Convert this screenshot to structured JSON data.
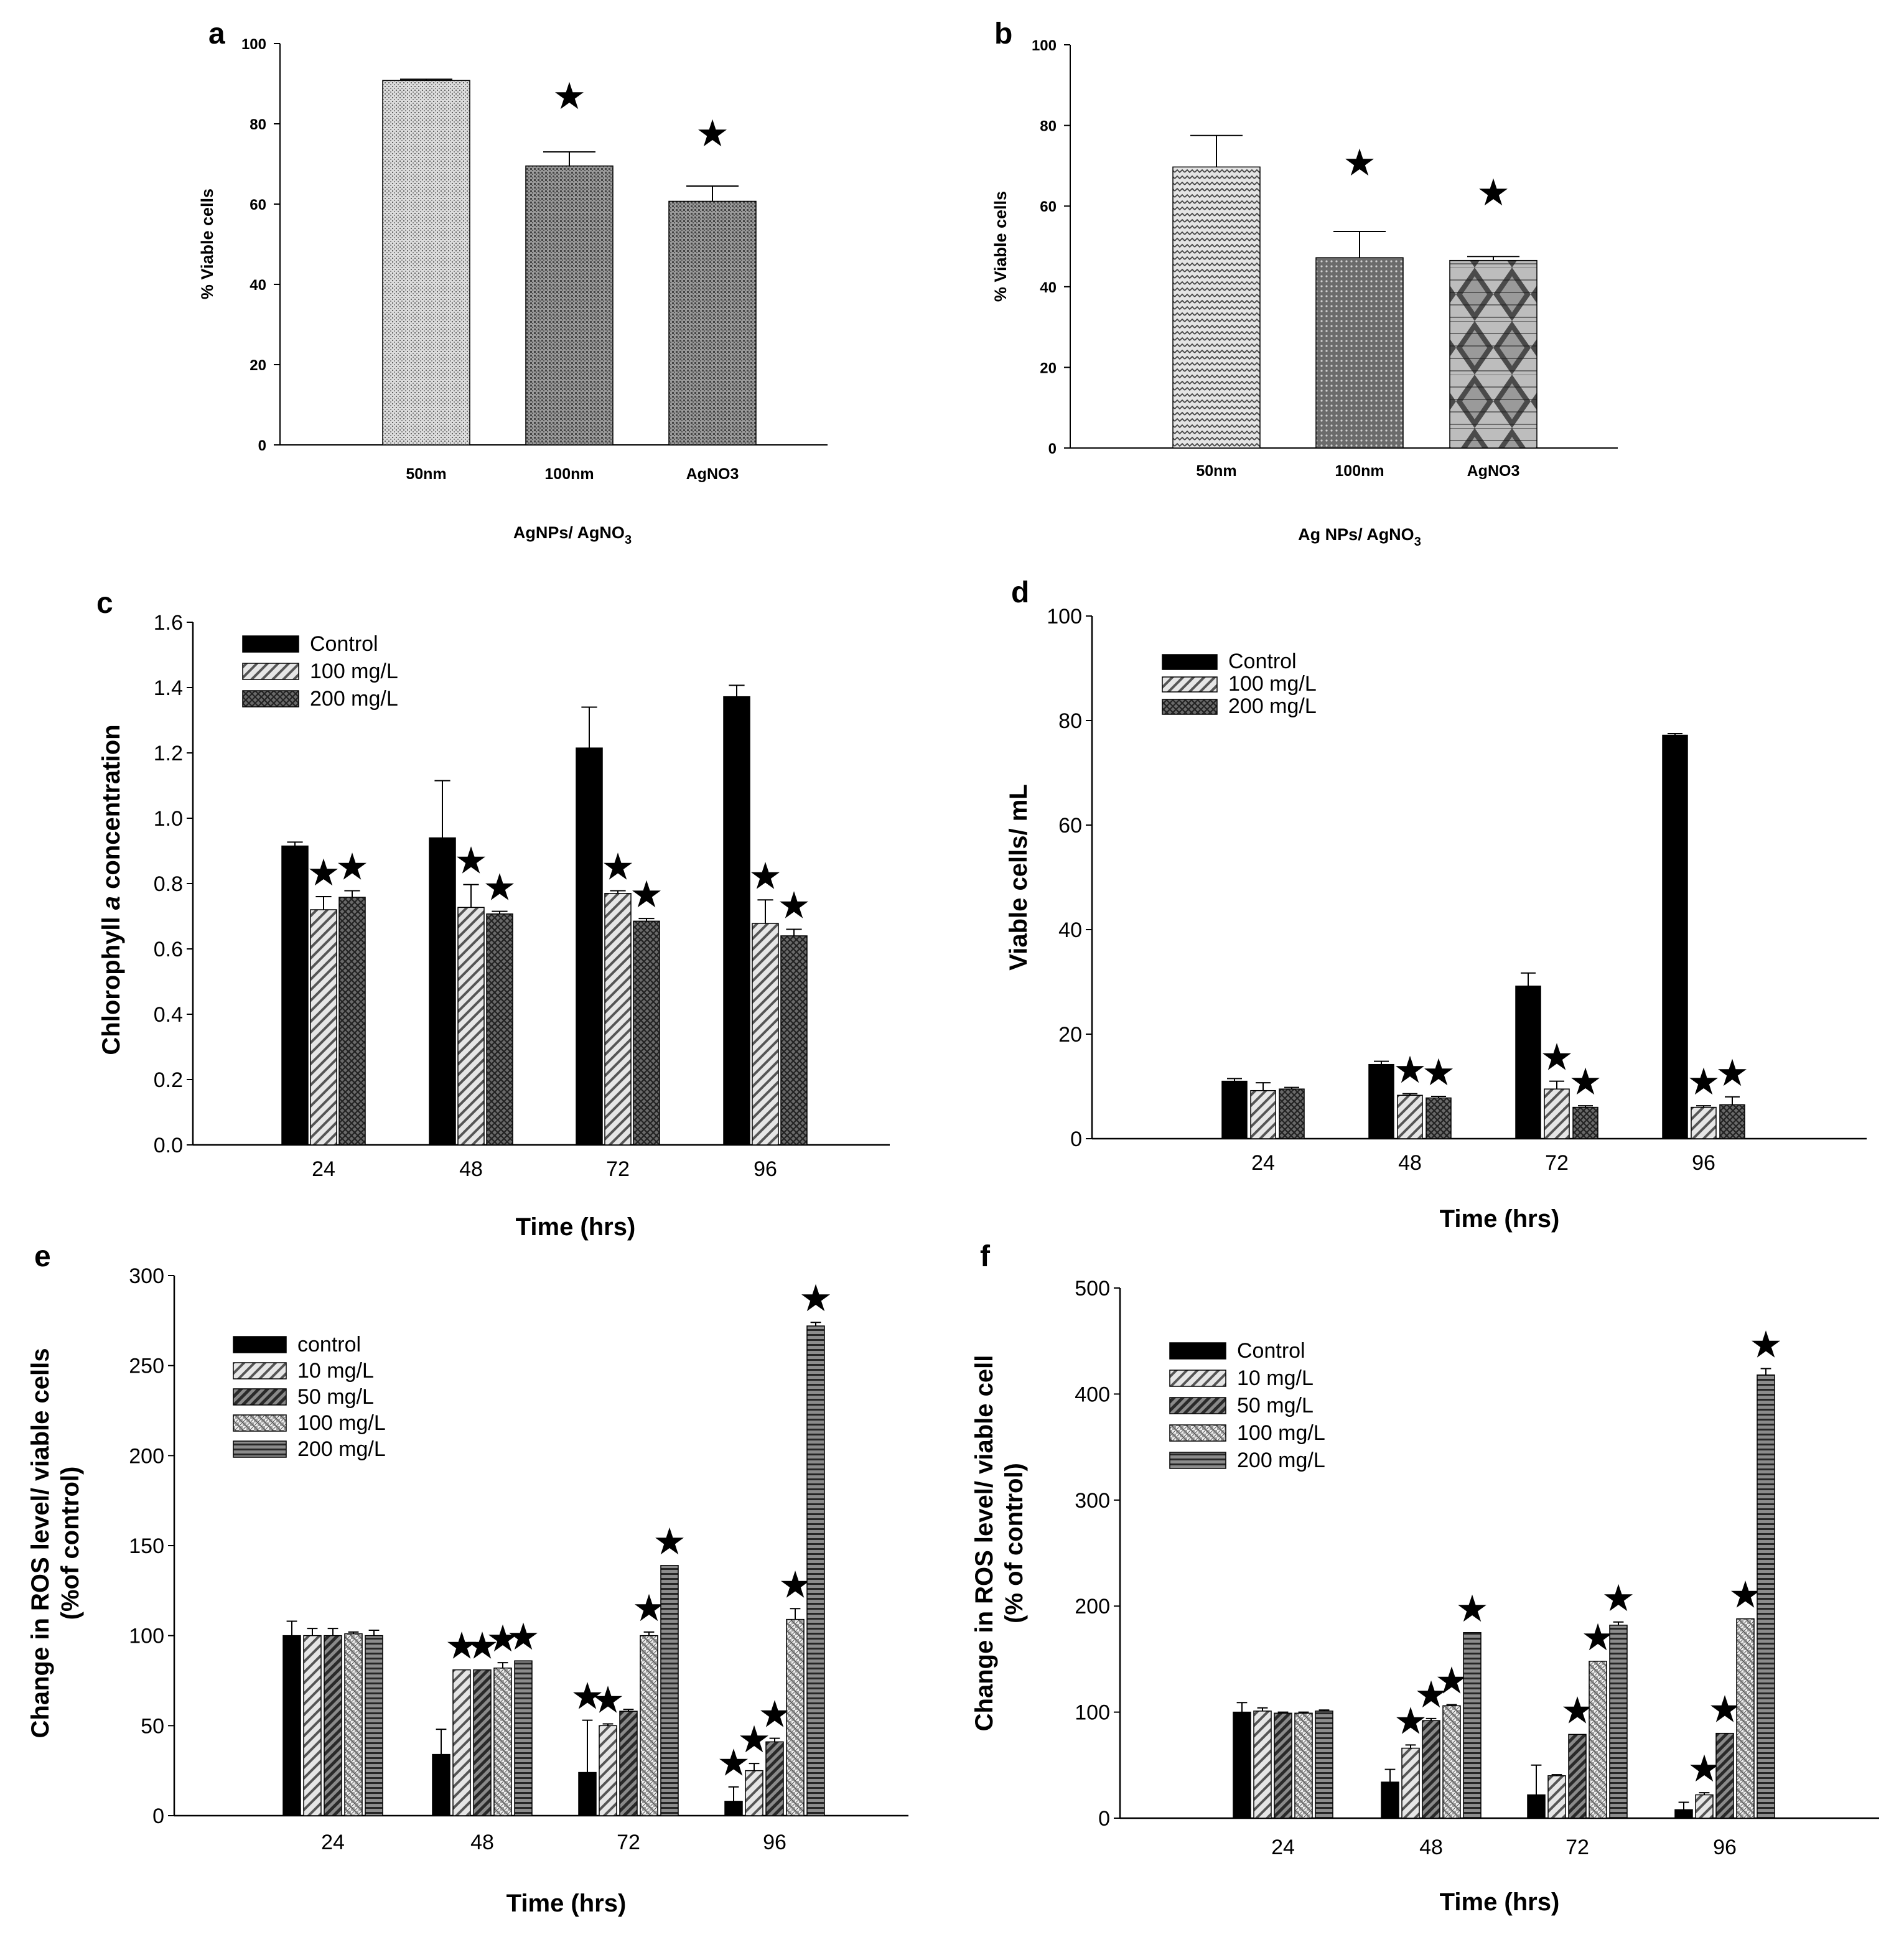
{
  "colors": {
    "black": "#000000",
    "white": "#ffffff",
    "bar_light": "#d9d9d9",
    "bar_mid": "#9a9a9a",
    "bar_dark": "#5a5a5a"
  },
  "star_symbol": "★",
  "chart_data": [
    {
      "id": "a",
      "panel_label": "a",
      "type": "bar",
      "title": "",
      "xlabel": "AgNPs/ AgNO",
      "xlabel_sub": "3",
      "ylabel": "% Viable cells",
      "ylim": [
        0,
        100
      ],
      "yticks": [
        "0",
        "20",
        "40",
        "60",
        "80",
        "100"
      ],
      "categories": [
        "50nm",
        "100nm",
        "AgNO3"
      ],
      "series": [
        {
          "name": "",
          "values": [
            90.8,
            69.5,
            60.7
          ],
          "errors": [
            0.3,
            3.5,
            3.8
          ],
          "sig": [
            false,
            true,
            true
          ]
        }
      ]
    },
    {
      "id": "b",
      "panel_label": "b",
      "type": "bar",
      "title": "",
      "xlabel": "Ag NPs/ AgNO",
      "xlabel_sub": "3",
      "ylabel": "% Viable cells",
      "ylim": [
        0,
        100
      ],
      "yticks": [
        "0",
        "20",
        "40",
        "60",
        "80",
        "100"
      ],
      "categories": [
        "50nm",
        "100nm",
        "AgNO3"
      ],
      "series": [
        {
          "name": "",
          "values": [
            69.7,
            47.2,
            46.5
          ],
          "errors": [
            7.8,
            6.5,
            1.0
          ],
          "sig": [
            false,
            true,
            true
          ]
        }
      ]
    },
    {
      "id": "c",
      "panel_label": "c",
      "type": "bar",
      "title": "",
      "xlabel": "Time (hrs)",
      "ylabel_parts": [
        "Chlorophyll ",
        "a",
        " concentration"
      ],
      "ylim": [
        0,
        1.6
      ],
      "yticks": [
        "0.0",
        "0.2",
        "0.4",
        "0.6",
        "0.8",
        "1.0",
        "1.2",
        "1.4",
        "1.6"
      ],
      "categories": [
        "24",
        "48",
        "72",
        "96"
      ],
      "legend": [
        "Control",
        "100 mg/L",
        "200 mg/L"
      ],
      "series": [
        {
          "name": "Control",
          "values": [
            0.915,
            0.94,
            1.215,
            1.372
          ],
          "errors": [
            0.012,
            0.175,
            0.125,
            0.035
          ],
          "sig": [
            false,
            false,
            false,
            false
          ]
        },
        {
          "name": "100 mg/L",
          "values": [
            0.72,
            0.727,
            0.77,
            0.678
          ],
          "errors": [
            0.04,
            0.07,
            0.008,
            0.072
          ],
          "sig": [
            true,
            true,
            true,
            true
          ]
        },
        {
          "name": "200 mg/L",
          "values": [
            0.758,
            0.707,
            0.685,
            0.64
          ],
          "errors": [
            0.02,
            0.008,
            0.008,
            0.02
          ],
          "sig": [
            true,
            true,
            true,
            true
          ]
        }
      ]
    },
    {
      "id": "d",
      "panel_label": "d",
      "type": "bar",
      "title": "",
      "xlabel": "Time (hrs)",
      "ylabel": "Viable cells/ mL",
      "ylim": [
        0,
        100
      ],
      "yticks": [
        "0",
        "20",
        "40",
        "60",
        "80",
        "100"
      ],
      "categories": [
        "24",
        "48",
        "72",
        "96"
      ],
      "legend": [
        "Control",
        "100 mg/L",
        "200 mg/L"
      ],
      "series": [
        {
          "name": "Control",
          "values": [
            11.0,
            14.2,
            29.2,
            77.2
          ],
          "errors": [
            0.5,
            0.6,
            2.5,
            0.3
          ],
          "sig": [
            false,
            false,
            false,
            false
          ]
        },
        {
          "name": "100 mg/L",
          "values": [
            9.2,
            8.3,
            9.5,
            6.0
          ],
          "errors": [
            1.5,
            0.3,
            1.5,
            0.3
          ],
          "sig": [
            false,
            true,
            true,
            true
          ]
        },
        {
          "name": "200 mg/L",
          "values": [
            9.5,
            7.8,
            6.0,
            6.5
          ],
          "errors": [
            0.3,
            0.3,
            0.3,
            1.5
          ],
          "sig": [
            false,
            true,
            true,
            true
          ]
        }
      ]
    },
    {
      "id": "e",
      "panel_label": "e",
      "type": "bar",
      "title": "",
      "xlabel": "Time (hrs)",
      "ylabel": "Change in ROS level/ viable cells",
      "ylabel2": "(%of control)",
      "ylim": [
        0,
        300
      ],
      "yticks": [
        "0",
        "50",
        "100",
        "150",
        "200",
        "250",
        "300"
      ],
      "categories": [
        "24",
        "48",
        "72",
        "96"
      ],
      "legend": [
        "control",
        "10 mg/L",
        "50 mg/L",
        "100 mg/L",
        "200 mg/L"
      ],
      "series": [
        {
          "name": "control",
          "values": [
            100,
            34,
            24,
            8
          ],
          "errors": [
            8,
            14,
            29,
            8
          ],
          "sig": [
            false,
            false,
            true,
            true
          ]
        },
        {
          "name": "10 mg/L",
          "values": [
            100,
            81,
            50,
            25
          ],
          "errors": [
            4,
            0,
            1,
            4
          ],
          "sig": [
            false,
            true,
            true,
            true
          ]
        },
        {
          "name": "50 mg/L",
          "values": [
            100,
            81,
            58,
            41
          ],
          "errors": [
            4,
            0,
            1,
            2
          ],
          "sig": [
            false,
            true,
            false,
            true
          ]
        },
        {
          "name": "100 mg/L",
          "values": [
            101,
            82,
            100,
            109
          ],
          "errors": [
            1,
            3,
            2,
            6
          ],
          "sig": [
            false,
            true,
            true,
            true
          ]
        },
        {
          "name": "200 mg/L",
          "values": [
            100,
            86,
            139,
            272
          ],
          "errors": [
            3,
            0,
            0,
            2
          ],
          "sig": [
            false,
            true,
            true,
            true
          ]
        }
      ]
    },
    {
      "id": "f",
      "panel_label": "f",
      "type": "bar",
      "title": "",
      "xlabel": "Time (hrs)",
      "ylabel": "Change in ROS level/ viable cell",
      "ylabel2": "(% of control)",
      "ylim": [
        0,
        500
      ],
      "yticks": [
        "0",
        "100",
        "200",
        "300",
        "400",
        "500"
      ],
      "categories": [
        "24",
        "48",
        "72",
        "96"
      ],
      "legend": [
        "Control",
        "10 mg/L",
        "50 mg/L",
        "100 mg/L",
        "200 mg/L"
      ],
      "series": [
        {
          "name": "Control",
          "values": [
            100,
            34,
            22,
            8
          ],
          "errors": [
            9,
            12,
            28,
            7
          ],
          "sig": [
            false,
            false,
            false,
            false
          ]
        },
        {
          "name": "10 mg/L",
          "values": [
            101,
            66,
            40,
            22
          ],
          "errors": [
            3,
            3,
            1,
            2
          ],
          "sig": [
            false,
            true,
            false,
            true
          ]
        },
        {
          "name": "50 mg/L",
          "values": [
            99,
            92,
            79,
            80
          ],
          "errors": [
            1,
            2,
            0,
            0
          ],
          "sig": [
            false,
            true,
            true,
            true
          ]
        },
        {
          "name": "100 mg/L",
          "values": [
            99,
            106,
            148,
            188
          ],
          "errors": [
            1,
            1,
            0,
            0
          ],
          "sig": [
            false,
            true,
            true,
            true
          ]
        },
        {
          "name": "200 mg/L",
          "values": [
            101,
            175,
            182,
            418
          ],
          "errors": [
            1,
            0,
            3,
            6
          ],
          "sig": [
            false,
            true,
            true,
            true
          ]
        }
      ]
    }
  ]
}
